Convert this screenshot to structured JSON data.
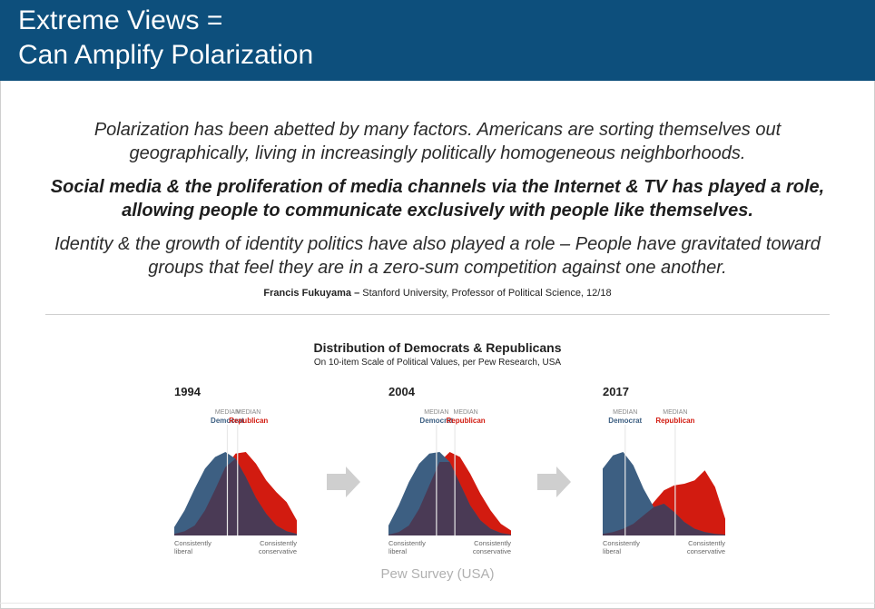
{
  "slide": {
    "title_line1": "Extreme Views =",
    "title_line2": "Can Amplify Polarization",
    "quote_p1": "Polarization has been abetted by many factors. Americans are sorting themselves out geographically, living in increasingly politically homogeneous neighborhoods.",
    "quote_p2": "Social media & the proliferation of media channels via the Internet & TV has played a role, allowing people to communicate exclusively with people like themselves.",
    "quote_p3": "Identity & the growth of identity politics have also played a role – People have gravitated toward groups that feel they are in a zero-sum competition against one another.",
    "attribution_name": "Francis Fukuyama –",
    "attribution_rest": " Stanford University, Professor of Political Science, 12/18",
    "source": "Pew Survey (USA)"
  },
  "colors": {
    "header_bg": "#0d4f7c",
    "democrat": "#3d5f82",
    "republican": "#d21b10",
    "overlap": "#4a3a55",
    "arrow": "#cfcfcf"
  },
  "chart_data": {
    "type": "area",
    "title": "Distribution of Democrats & Republicans",
    "subtitle": "On 10-item Scale of Political Values, per Pew Research, USA",
    "x_axis_left_label": [
      "Consistently",
      "liberal"
    ],
    "x_axis_right_label": [
      "Consistently",
      "conservative"
    ],
    "median_label_top": "MEDIAN",
    "series_names": [
      "Democrat",
      "Republican"
    ],
    "panels": [
      {
        "year": "1994",
        "democrat": [
          0.1,
          0.3,
          0.56,
          0.8,
          0.94,
          1.0,
          0.92,
          0.7,
          0.45,
          0.26,
          0.12,
          0.05,
          0.02
        ],
        "republican": [
          0.02,
          0.05,
          0.12,
          0.3,
          0.55,
          0.82,
          0.98,
          1.0,
          0.86,
          0.66,
          0.52,
          0.4,
          0.18
        ],
        "median_democrat": 5.2,
        "median_republican": 6.2
      },
      {
        "year": "2004",
        "democrat": [
          0.12,
          0.36,
          0.64,
          0.86,
          0.98,
          1.0,
          0.88,
          0.62,
          0.36,
          0.18,
          0.08,
          0.03,
          0.01
        ],
        "republican": [
          0.01,
          0.04,
          0.12,
          0.32,
          0.6,
          0.88,
          1.0,
          0.94,
          0.74,
          0.5,
          0.3,
          0.14,
          0.06
        ],
        "median_democrat": 4.7,
        "median_republican": 6.5
      },
      {
        "year": "2017",
        "democrat": [
          0.8,
          0.96,
          1.0,
          0.84,
          0.56,
          0.34,
          0.38,
          0.28,
          0.16,
          0.08,
          0.04,
          0.02,
          0.01
        ],
        "republican": [
          0.02,
          0.04,
          0.08,
          0.14,
          0.24,
          0.4,
          0.54,
          0.6,
          0.62,
          0.66,
          0.78,
          0.58,
          0.2
        ],
        "median_democrat": 2.2,
        "median_republican": 7.1
      }
    ]
  }
}
